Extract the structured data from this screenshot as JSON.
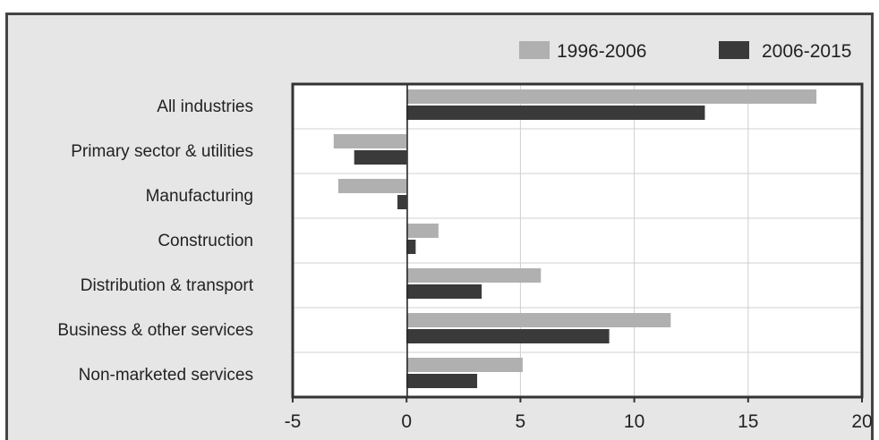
{
  "chart_data": {
    "type": "bar",
    "orientation": "horizontal",
    "categories": [
      "All industries",
      "Primary sector & utilities",
      "Manufacturing",
      "Construction",
      "Distribution & transport",
      "Business & other services",
      "Non-marketed services"
    ],
    "series": [
      {
        "name": "1996-2006",
        "color": "#b0b0b0",
        "values": [
          18.0,
          -3.2,
          -3.0,
          1.4,
          5.9,
          11.6,
          5.1
        ]
      },
      {
        "name": "2006-2015",
        "color": "#3a3a3a",
        "values": [
          13.1,
          -2.3,
          -0.4,
          0.4,
          3.3,
          8.9,
          3.1
        ]
      }
    ],
    "xlim": [
      -5,
      20
    ],
    "xticks": [
      "-5",
      "0",
      "5",
      "10",
      "15",
      "20"
    ],
    "grid": true,
    "legend_position": "top-right",
    "title": "",
    "xlabel": "",
    "ylabel": ""
  }
}
